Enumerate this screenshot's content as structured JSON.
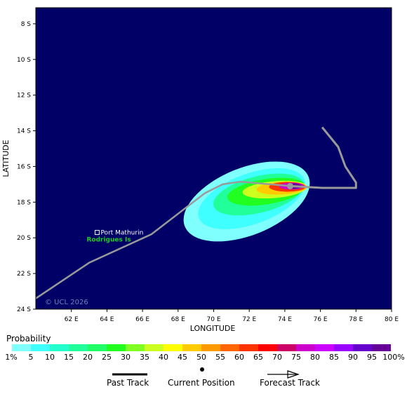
{
  "map": {
    "background_color": "#000066",
    "x_axis_title": "LONGITUDE",
    "y_axis_title": "LATITUDE",
    "lon_ticks": [
      "62 E",
      "64 E",
      "66 E",
      "68 E",
      "70 E",
      "72 E",
      "74 E",
      "76 E",
      "78 E",
      "80 E"
    ],
    "lat_ticks": [
      "8 S",
      "10 S",
      "12 S",
      "14 S",
      "16 S",
      "18 S",
      "20 S",
      "22 S",
      "24 S"
    ],
    "lon_range": [
      60.0,
      80.0
    ],
    "lat_range": [
      -7.1,
      -24.0
    ],
    "place_label": "Port Mathurin",
    "island_label": "Rodrigues Is",
    "island_label_color": "#22cc22",
    "copyright": "© UCL 2026"
  },
  "track": {
    "color": "#9a9a9a",
    "past_track": [
      [
        60.0,
        -23.4
      ],
      [
        63.0,
        -21.4
      ],
      [
        66.5,
        -19.8
      ],
      [
        69.5,
        -17.5
      ],
      [
        70.5,
        -17.0
      ],
      [
        71.5,
        -16.85
      ],
      [
        74.3,
        -17.1
      ]
    ],
    "current_position": [
      74.3,
      -17.1
    ],
    "forecast_track": [
      [
        74.3,
        -17.1
      ],
      [
        76.1,
        -17.2
      ],
      [
        78.0,
        -17.2
      ],
      [
        78.0,
        -16.9
      ],
      [
        77.4,
        -16.0
      ],
      [
        77.0,
        -14.9
      ],
      [
        76.1,
        -13.8
      ]
    ]
  },
  "probability": {
    "title": "Probability",
    "levels": [
      "1%",
      "5",
      "10",
      "15",
      "20",
      "25",
      "30",
      "35",
      "40",
      "45",
      "50",
      "55",
      "60",
      "65",
      "70",
      "75",
      "80",
      "85",
      "90",
      "95",
      "100%"
    ],
    "colors": [
      "#80ffff",
      "#40ffff",
      "#20ffcc",
      "#20ff99",
      "#20ff66",
      "#20ff20",
      "#80ff20",
      "#ccff20",
      "#ffff00",
      "#ffcc00",
      "#ff9900",
      "#ff6600",
      "#ff3300",
      "#ff0000",
      "#cc0066",
      "#cc00cc",
      "#cc00ff",
      "#9900ff",
      "#6600cc",
      "#660099",
      "#660066"
    ]
  },
  "key": {
    "past_track_label": "Past Track",
    "current_position_label": "Current Position",
    "forecast_track_label": "Forecast Track"
  }
}
